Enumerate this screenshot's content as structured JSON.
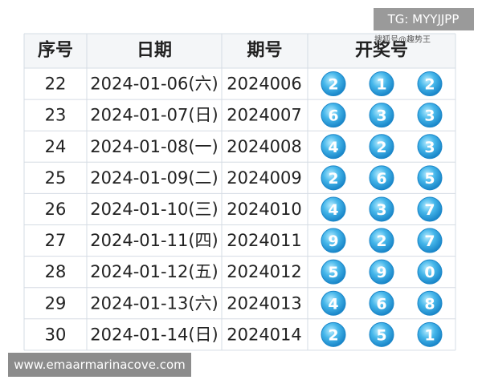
{
  "table": {
    "header": [
      "序号",
      "日期",
      "期号",
      "开奖号"
    ],
    "rows": [
      {
        "no": "22",
        "date": "2024-01-06(六)",
        "issue": "2024006",
        "balls": [
          "2",
          "1",
          "2"
        ]
      },
      {
        "no": "23",
        "date": "2024-01-07(日)",
        "issue": "2024007",
        "balls": [
          "6",
          "3",
          "3"
        ]
      },
      {
        "no": "24",
        "date": "2024-01-08(一)",
        "issue": "2024008",
        "balls": [
          "4",
          "2",
          "3"
        ]
      },
      {
        "no": "25",
        "date": "2024-01-09(二)",
        "issue": "2024009",
        "balls": [
          "2",
          "6",
          "5"
        ]
      },
      {
        "no": "26",
        "date": "2024-01-10(三)",
        "issue": "2024010",
        "balls": [
          "4",
          "3",
          "7"
        ]
      },
      {
        "no": "27",
        "date": "2024-01-11(四)",
        "issue": "2024011",
        "balls": [
          "9",
          "2",
          "7"
        ]
      },
      {
        "no": "28",
        "date": "2024-01-12(五)",
        "issue": "2024012",
        "balls": [
          "5",
          "9",
          "0"
        ]
      },
      {
        "no": "29",
        "date": "2024-01-13(六)",
        "issue": "2024013",
        "balls": [
          "4",
          "6",
          "8"
        ]
      },
      {
        "no": "30",
        "date": "2024-01-14(日)",
        "issue": "2024014",
        "balls": [
          "2",
          "5",
          "1"
        ]
      }
    ]
  },
  "watermarks": {
    "top": "TG: MYYJJPP",
    "source": "搜狐号@趣势王",
    "bottom": "www.emaarmarinacove.com"
  }
}
